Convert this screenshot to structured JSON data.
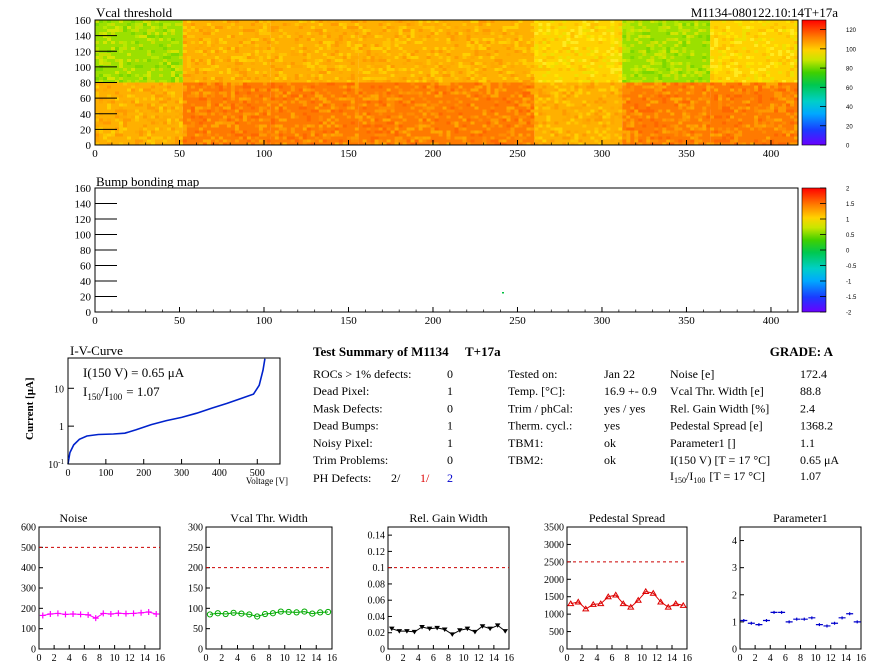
{
  "header": {
    "title": "Vcal threshold",
    "module_id": "M1134-080122.10:14T+17a"
  },
  "vcal_map": {
    "title": "Vcal threshold",
    "x_ticks": [
      "0",
      "50",
      "100",
      "150",
      "200",
      "250",
      "300",
      "350",
      "400"
    ],
    "y_ticks": [
      "0",
      "20",
      "40",
      "60",
      "80",
      "100",
      "120",
      "140",
      "160"
    ],
    "xlim": [
      0,
      416
    ],
    "ylim": [
      0,
      160
    ],
    "palette_ticks": [
      "0",
      "20",
      "40",
      "60",
      "80",
      "100",
      "120"
    ],
    "palette_range": [
      0,
      130
    ]
  },
  "bump_map": {
    "title": "Bump bonding map",
    "x_ticks": [
      "0",
      "50",
      "100",
      "150",
      "200",
      "250",
      "300",
      "350",
      "400"
    ],
    "y_ticks": [
      "0",
      "20",
      "40",
      "60",
      "80",
      "100",
      "120",
      "140",
      "160"
    ],
    "palette_ticks": [
      "-2",
      "-1.5",
      "-1",
      "-0.5",
      "0",
      "0.5",
      "1",
      "1.5",
      "2"
    ],
    "palette_range": [
      -2,
      2
    ]
  },
  "iv_curve": {
    "title": "I-V-Curve",
    "ylabel": "Current [μA]",
    "xlabel": "Voltage [V]",
    "annotation_1": "I(150 V) = 0.65 μA",
    "annotation_2_lead": "I",
    "annotation_2_sub1": "150",
    "annotation_2_sep": "/I",
    "annotation_2_sub2": "100",
    "annotation_2_value": "= 1.07",
    "x_ticks": [
      "0",
      "100",
      "200",
      "300",
      "400",
      "500"
    ],
    "y_ticks": [
      "10",
      "1",
      "10"
    ],
    "y_tick_exps": [
      "-1",
      "",
      ""
    ]
  },
  "summary": {
    "heading": "Test Summary of M1134",
    "temp_label": "T+17a",
    "grade": "GRADE:  A",
    "rows": [
      {
        "label": "ROCs > 1% defects:",
        "value": "0"
      },
      {
        "label": "Dead Pixel:",
        "value": "1"
      },
      {
        "label": "Mask Defects:",
        "value": "0"
      },
      {
        "label": "Dead Bumps:",
        "value": "1"
      },
      {
        "label": "Noisy Pixel:",
        "value": "1"
      },
      {
        "label": "Trim Problems:",
        "value": "0"
      }
    ],
    "ph_label": "PH Defects:",
    "ph_a": "2/",
    "ph_b": "1/",
    "ph_c": "2",
    "middle": [
      {
        "label": "Tested on:",
        "value": "Jan 22"
      },
      {
        "label": "Temp. [°C]:",
        "value": "16.9 +- 0.9"
      },
      {
        "label": "Trim / phCal:",
        "value": "yes / yes"
      },
      {
        "label": "Therm. cycl.:",
        "value": "yes"
      },
      {
        "label": "TBM1:",
        "value": "ok"
      },
      {
        "label": "TBM2:",
        "value": "ok"
      }
    ],
    "right": [
      {
        "label": "Noise [e]",
        "value": "172.4"
      },
      {
        "label": "Vcal Thr. Width [e]",
        "value": "88.8"
      },
      {
        "label": "Rel. Gain Width [%]",
        "value": "2.4"
      },
      {
        "label": "Pedestal Spread [e]",
        "value": "1368.2"
      },
      {
        "label": "Parameter1 []",
        "value": "1.1"
      },
      {
        "label": "I(150 V) [T = 17 °C]",
        "value": "0.65 μA"
      }
    ],
    "ratio_label_tail": "[T = 17 °C]",
    "ratio_value": "1.07"
  },
  "chart_data": [
    {
      "type": "scatter",
      "title": "Noise",
      "x": [
        0,
        1,
        2,
        3,
        4,
        5,
        6,
        7,
        8,
        9,
        10,
        11,
        12,
        13,
        14,
        15
      ],
      "values": [
        165,
        172,
        175,
        170,
        172,
        170,
        168,
        152,
        175,
        172,
        176,
        174,
        175,
        178,
        182,
        172
      ],
      "ylim": [
        0,
        600
      ],
      "y_ticks": [
        "0",
        "100",
        "200",
        "300",
        "400",
        "500",
        "600"
      ],
      "limit": 500,
      "color": "#ff00ff",
      "marker": "plus"
    },
    {
      "type": "scatter",
      "title": "Vcal Thr. Width",
      "x": [
        0,
        1,
        2,
        3,
        4,
        5,
        6,
        7,
        8,
        9,
        10,
        11,
        12,
        13,
        14,
        15
      ],
      "values": [
        85,
        88,
        86,
        89,
        87,
        85,
        80,
        86,
        88,
        92,
        91,
        90,
        92,
        87,
        90,
        91
      ],
      "ylim": [
        0,
        300
      ],
      "y_ticks": [
        "0",
        "50",
        "100",
        "150",
        "200",
        "250",
        "300"
      ],
      "limit": 200,
      "color": "#00aa00",
      "marker": "circle"
    },
    {
      "type": "scatter",
      "title": "Rel. Gain Width",
      "x": [
        0,
        1,
        2,
        3,
        4,
        5,
        6,
        7,
        8,
        9,
        10,
        11,
        12,
        13,
        14,
        15
      ],
      "values": [
        0.025,
        0.022,
        0.022,
        0.021,
        0.027,
        0.025,
        0.026,
        0.024,
        0.018,
        0.023,
        0.025,
        0.021,
        0.028,
        0.025,
        0.029,
        0.022
      ],
      "ylim": [
        0,
        0.15
      ],
      "y_ticks": [
        "0",
        "0.02",
        "0.04",
        "0.06",
        "0.08",
        "0.1",
        "0.12",
        "0.14"
      ],
      "limit": 0.1,
      "color": "#000000",
      "marker": "triangle-down"
    },
    {
      "type": "scatter",
      "title": "Pedestal Spread",
      "x": [
        0,
        1,
        2,
        3,
        4,
        5,
        6,
        7,
        8,
        9,
        10,
        11,
        12,
        13,
        14,
        15
      ],
      "values": [
        1300,
        1350,
        1150,
        1280,
        1300,
        1500,
        1550,
        1300,
        1200,
        1400,
        1650,
        1600,
        1350,
        1200,
        1300,
        1250
      ],
      "ylim": [
        0,
        3500
      ],
      "y_ticks": [
        "0",
        "500",
        "1000",
        "1500",
        "2000",
        "2500",
        "3000",
        "3500"
      ],
      "limit": 2500,
      "color": "#dd0000",
      "marker": "triangle-up"
    },
    {
      "type": "scatter",
      "title": "Parameter1",
      "x": [
        0,
        1,
        2,
        3,
        4,
        5,
        6,
        7,
        8,
        9,
        10,
        11,
        12,
        13,
        14,
        15
      ],
      "values": [
        1.05,
        0.95,
        0.9,
        1.05,
        1.35,
        1.35,
        1.0,
        1.1,
        1.1,
        1.15,
        0.9,
        0.85,
        0.95,
        1.15,
        1.3,
        1.0
      ],
      "ylim": [
        0,
        4.5
      ],
      "y_ticks": [
        "0",
        "1",
        "2",
        "3",
        "4"
      ],
      "limit": null,
      "color": "#0000cc",
      "marker": "hbar"
    }
  ],
  "bottom_x_ticks": [
    "0",
    "2",
    "4",
    "6",
    "8",
    "10",
    "12",
    "14",
    "16"
  ],
  "palette_colors": [
    "#6a00ff",
    "#3b2bff",
    "#0a5bff",
    "#00a8ff",
    "#00d6d6",
    "#00c88a",
    "#00c840",
    "#40d000",
    "#9be000",
    "#e6e600",
    "#ffc000",
    "#ff8c00",
    "#ff4a00",
    "#ff0000",
    "#e00000"
  ]
}
